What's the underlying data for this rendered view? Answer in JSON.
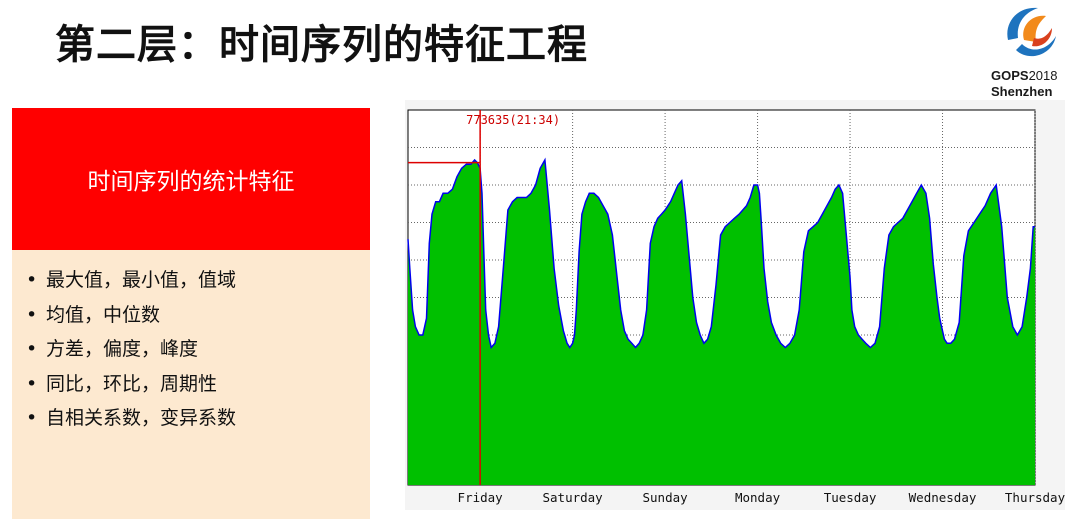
{
  "slide": {
    "title": "第二层：时间序列的特征工程",
    "logo": {
      "name": "GOPS",
      "year": "2018",
      "city": "Shenzhen"
    }
  },
  "panel": {
    "heading": "时间序列的统计特征",
    "bullets": [
      "最大值，最小值，值域",
      "均值，中位数",
      "方差，偏度，峰度",
      "同比，环比，周期性",
      "自相关系数，变异系数"
    ]
  },
  "chart_data": {
    "type": "area",
    "title": "",
    "annotation": "773635(21:34)",
    "x_ticks": [
      "Friday",
      "Saturday",
      "Sunday",
      "Monday",
      "Tuesday",
      "Wednesday",
      "Thursday"
    ],
    "x_unit": "day",
    "xlim": [
      -0.78,
      6.0
    ],
    "ylim": [
      0,
      900000
    ],
    "grid": true,
    "series": [
      {
        "color_fill": "#00c000",
        "color_line": "#0000ee",
        "x": [
          -0.78,
          -0.76,
          -0.73,
          -0.7,
          -0.66,
          -0.62,
          -0.58,
          -0.55,
          -0.52,
          -0.48,
          -0.44,
          -0.4,
          -0.35,
          -0.3,
          -0.25,
          -0.2,
          -0.15,
          -0.1,
          -0.06,
          -0.03,
          0.0,
          0.02,
          0.04,
          0.06,
          0.09,
          0.12,
          0.16,
          0.2,
          0.25,
          0.3,
          0.35,
          0.4,
          0.45,
          0.5,
          0.55,
          0.6,
          0.65,
          0.7,
          0.75,
          0.8,
          0.85,
          0.9,
          0.94,
          0.97,
          1.0,
          1.02,
          1.04,
          1.07,
          1.1,
          1.14,
          1.18,
          1.23,
          1.28,
          1.33,
          1.38,
          1.43,
          1.48,
          1.52,
          1.56,
          1.6,
          1.64,
          1.68,
          1.72,
          1.76,
          1.8,
          1.84,
          1.88,
          1.92,
          1.96,
          2.0,
          2.03,
          2.06,
          2.1,
          2.14,
          2.18,
          2.22,
          2.26,
          2.3,
          2.34,
          2.38,
          2.42,
          2.46,
          2.5,
          2.55,
          2.6,
          2.65,
          2.7,
          2.75,
          2.8,
          2.84,
          2.88,
          2.92,
          2.96,
          3.0,
          3.02,
          3.04,
          3.07,
          3.11,
          3.15,
          3.2,
          3.25,
          3.3,
          3.35,
          3.4,
          3.45,
          3.5,
          3.55,
          3.6,
          3.65,
          3.7,
          3.75,
          3.8,
          3.84,
          3.88,
          3.92,
          3.96,
          4.0,
          4.02,
          4.05,
          4.09,
          4.13,
          4.17,
          4.22,
          4.27,
          4.32,
          4.37,
          4.42,
          4.47,
          4.52,
          4.57,
          4.62,
          4.67,
          4.72,
          4.77,
          4.82,
          4.86,
          4.9,
          4.94,
          4.97,
          5.0,
          5.02,
          5.05,
          5.09,
          5.13,
          5.18,
          5.23,
          5.28,
          5.34,
          5.4,
          5.46,
          5.52,
          5.58,
          5.64,
          5.7,
          5.76,
          5.81,
          5.86,
          5.91,
          5.95,
          5.98,
          6.0
        ],
        "values": [
          590000,
          520000,
          420000,
          380000,
          360000,
          360000,
          400000,
          580000,
          650000,
          680000,
          680000,
          700000,
          700000,
          710000,
          740000,
          760000,
          770000,
          770000,
          780000,
          773635,
          760000,
          700000,
          560000,
          420000,
          360000,
          330000,
          340000,
          380000,
          520000,
          660000,
          680000,
          690000,
          690000,
          690000,
          700000,
          720000,
          760000,
          780000,
          660000,
          520000,
          430000,
          370000,
          340000,
          330000,
          340000,
          360000,
          420000,
          560000,
          650000,
          680000,
          700000,
          700000,
          690000,
          670000,
          650000,
          600000,
          500000,
          420000,
          370000,
          350000,
          340000,
          330000,
          340000,
          360000,
          420000,
          580000,
          620000,
          640000,
          650000,
          660000,
          670000,
          680000,
          700000,
          720000,
          730000,
          650000,
          550000,
          450000,
          390000,
          360000,
          340000,
          350000,
          380000,
          480000,
          600000,
          620000,
          630000,
          640000,
          650000,
          660000,
          670000,
          690000,
          720000,
          720000,
          700000,
          630000,
          520000,
          440000,
          390000,
          360000,
          340000,
          330000,
          340000,
          360000,
          420000,
          560000,
          610000,
          620000,
          630000,
          650000,
          670000,
          690000,
          710000,
          720000,
          700000,
          600000,
          500000,
          420000,
          380000,
          360000,
          350000,
          340000,
          330000,
          340000,
          380000,
          520000,
          600000,
          620000,
          630000,
          640000,
          660000,
          680000,
          700000,
          720000,
          700000,
          640000,
          530000,
          450000,
          400000,
          370000,
          350000,
          340000,
          340000,
          350000,
          390000,
          550000,
          610000,
          630000,
          650000,
          670000,
          700000,
          720000,
          620000,
          450000,
          380000,
          360000,
          380000,
          450000,
          520000,
          620000,
          620000
        ]
      }
    ],
    "max_marker": {
      "x": 0.0,
      "value": 773635
    }
  }
}
